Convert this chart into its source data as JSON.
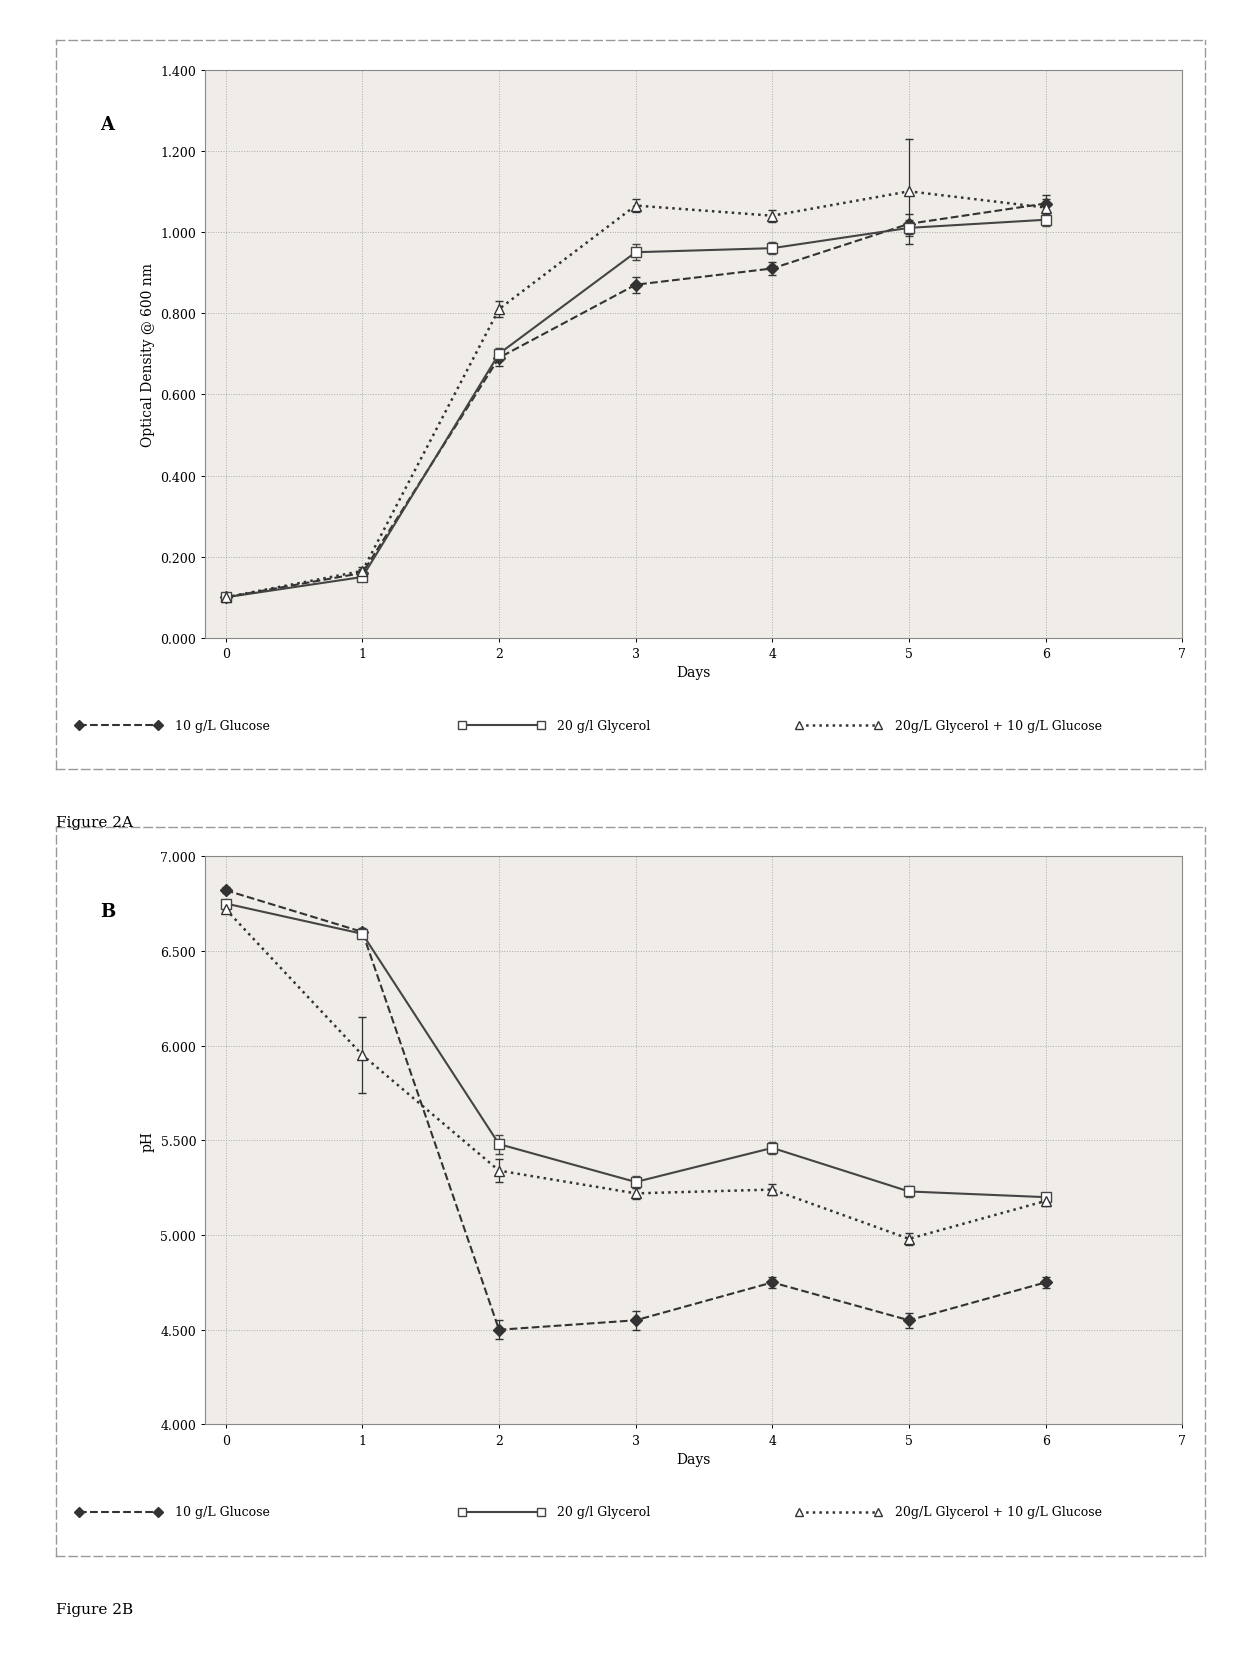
{
  "panel_A": {
    "label": "A",
    "xlabel": "Days",
    "ylabel": "Optical Density @ 600 nm",
    "ylim": [
      0.0,
      1.4
    ],
    "yticks": [
      0.0,
      0.2,
      0.4,
      0.6,
      0.8,
      1.0,
      1.2,
      1.4
    ],
    "xlim": [
      -0.15,
      7.0
    ],
    "xticks": [
      0,
      1,
      2,
      3,
      4,
      5,
      6,
      7
    ],
    "series": [
      {
        "label": "10 g/L Glucose",
        "x": [
          0,
          1,
          2,
          3,
          4,
          5,
          6
        ],
        "y": [
          0.1,
          0.16,
          0.69,
          0.87,
          0.91,
          1.02,
          1.07
        ],
        "yerr": [
          0.005,
          0.01,
          0.02,
          0.02,
          0.015,
          0.025,
          0.02
        ],
        "color": "#333333",
        "linestyle": "--",
        "marker": "D",
        "markersize": 6,
        "linewidth": 1.5,
        "mfc": "#333333"
      },
      {
        "label": "20 g/l Glycerol",
        "x": [
          0,
          1,
          2,
          3,
          4,
          5,
          6
        ],
        "y": [
          0.1,
          0.15,
          0.7,
          0.95,
          0.96,
          1.01,
          1.03
        ],
        "yerr": [
          0.005,
          0.008,
          0.015,
          0.02,
          0.015,
          0.02,
          0.015
        ],
        "color": "#444444",
        "linestyle": "-",
        "marker": "s",
        "markersize": 7,
        "linewidth": 1.5,
        "mfc": "white"
      },
      {
        "label": "20g/L Glycerol + 10 g/L Glucose",
        "x": [
          0,
          1,
          2,
          3,
          4,
          5,
          6
        ],
        "y": [
          0.1,
          0.165,
          0.81,
          1.065,
          1.04,
          1.1,
          1.06
        ],
        "yerr": [
          0.005,
          0.01,
          0.02,
          0.015,
          0.015,
          0.13,
          0.02
        ],
        "color": "#333333",
        "linestyle": ":",
        "marker": "^",
        "markersize": 7,
        "linewidth": 1.8,
        "mfc": "white"
      }
    ],
    "figure_label": "Figure 2A"
  },
  "panel_B": {
    "label": "B",
    "xlabel": "Days",
    "ylabel": "pH",
    "ylim": [
      4.0,
      7.0
    ],
    "yticks": [
      4.0,
      4.5,
      5.0,
      5.5,
      6.0,
      6.5,
      7.0
    ],
    "xlim": [
      -0.15,
      7.0
    ],
    "xticks": [
      0,
      1,
      2,
      3,
      4,
      5,
      6,
      7
    ],
    "series": [
      {
        "label": "10 g/L Glucose",
        "x": [
          0,
          1,
          2,
          3,
          4,
          5,
          6
        ],
        "y": [
          6.82,
          6.6,
          4.5,
          4.55,
          4.75,
          4.55,
          4.75
        ],
        "yerr": [
          0.015,
          0.02,
          0.05,
          0.05,
          0.03,
          0.04,
          0.03
        ],
        "color": "#333333",
        "linestyle": "--",
        "marker": "D",
        "markersize": 6,
        "linewidth": 1.5,
        "mfc": "#333333"
      },
      {
        "label": "20 g/l Glycerol",
        "x": [
          0,
          1,
          2,
          3,
          4,
          5,
          6
        ],
        "y": [
          6.75,
          6.59,
          5.48,
          5.28,
          5.46,
          5.23,
          5.2
        ],
        "yerr": [
          0.015,
          0.015,
          0.05,
          0.03,
          0.03,
          0.03,
          0.02
        ],
        "color": "#444444",
        "linestyle": "-",
        "marker": "s",
        "markersize": 7,
        "linewidth": 1.5,
        "mfc": "white"
      },
      {
        "label": "20g/L Glycerol + 10 g/L Glucose",
        "x": [
          0,
          1,
          2,
          3,
          4,
          5,
          6
        ],
        "y": [
          6.72,
          5.95,
          5.34,
          5.22,
          5.24,
          4.98,
          5.18
        ],
        "yerr": [
          0.015,
          0.2,
          0.06,
          0.03,
          0.03,
          0.03,
          0.025
        ],
        "color": "#333333",
        "linestyle": ":",
        "marker": "^",
        "markersize": 7,
        "linewidth": 1.8,
        "mfc": "white"
      }
    ],
    "figure_label": "Figure 2B"
  },
  "bg_color": "#f0ede8",
  "grid_color": "#aaaaaa",
  "outer_border_color": "#888888",
  "legend_fontsize": 9,
  "tick_fontsize": 9,
  "axis_label_fontsize": 10,
  "panel_label_fontsize": 13,
  "caption_fontsize": 11
}
